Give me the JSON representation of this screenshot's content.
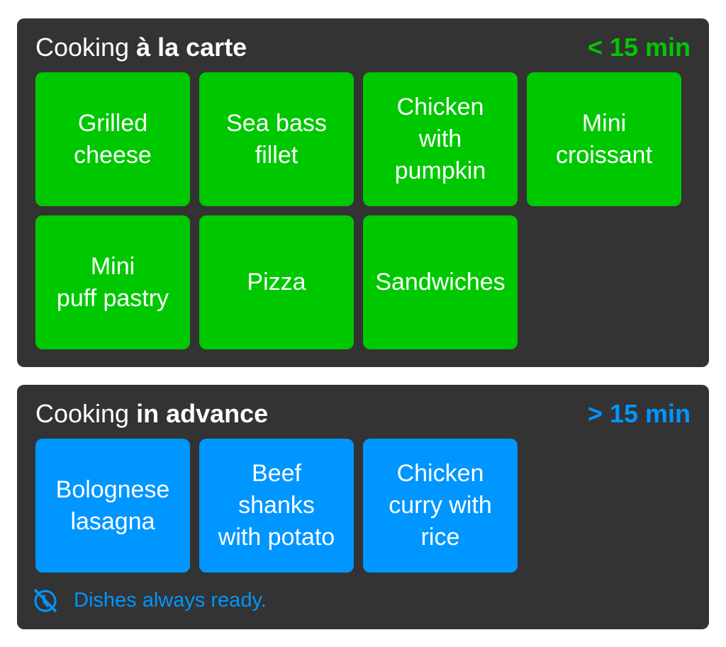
{
  "a_la_carte": {
    "title_prefix": "Cooking ",
    "title_bold": "à la carte",
    "time": "< 15 min",
    "color": "#00c800",
    "dishes": [
      "Grilled\ncheese",
      "Sea bass\nfillet",
      "Chicken\nwith\npumpkin",
      "Mini\ncroissant",
      "Mini\npuff pastry",
      "Pizza",
      "Sandwiches"
    ]
  },
  "in_advance": {
    "title_prefix": "Cooking ",
    "title_bold": "in advance",
    "time": "> 15 min",
    "color": "#0096ff",
    "dishes": [
      "Bolognese\nlasagna",
      "Beef\nshanks\nwith potato",
      "Chicken\ncurry with\nrice"
    ],
    "footer_icon": "no-clock-icon",
    "footer_text": "Dishes always ready."
  }
}
